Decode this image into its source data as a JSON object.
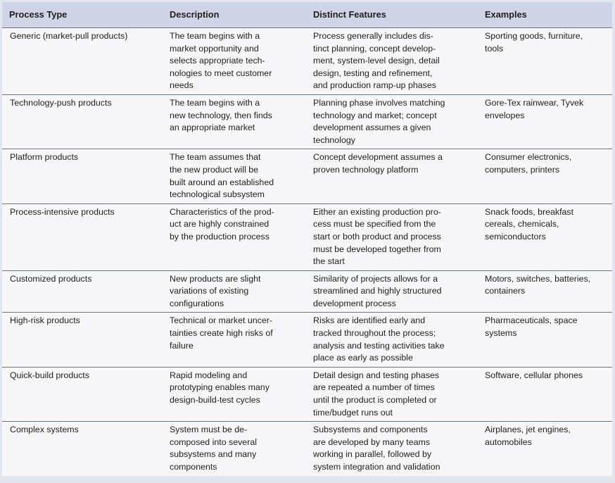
{
  "table": {
    "headers": [
      "Process Type",
      "Description",
      "Distinct Features",
      "Examples"
    ],
    "rows": [
      {
        "process_type": "Generic (market-pull products)",
        "description": "The team begins with a\nmarket opportunity and\nselects appropriate tech-\nnologies to meet customer\nneeds",
        "features": "Process generally includes dis-\ntinct planning, concept develop-\nment, system-level design, detail\ndesign, testing and refinement,\nand production ramp-up phases",
        "examples": "Sporting goods, furniture,\ntools"
      },
      {
        "process_type": "Technology-push products",
        "description": "The team begins with a\nnew technology, then finds\nan appropriate market",
        "features": "Planning phase involves matching\ntechnology and market; concept\ndevelopment assumes a given\ntechnology",
        "examples": "Gore-Tex rainwear, Tyvek\nenvelopes"
      },
      {
        "process_type": "Platform products",
        "description": "The team assumes that\nthe new product will be\nbuilt around an established\ntechnological subsystem",
        "features": "Concept development assumes a\nproven technology platform",
        "examples": "Consumer electronics,\ncomputers, printers"
      },
      {
        "process_type": "Process-intensive products",
        "description": "Characteristics of the prod-\nuct are highly constrained\nby the production process",
        "features": "Either an existing production pro-\ncess must be specified from the\nstart or both product and process\nmust be developed together from\nthe start",
        "examples": "Snack foods, breakfast\ncereals, chemicals,\nsemiconductors"
      },
      {
        "process_type": "Customized products",
        "description": "New products are slight\nvariations of existing\nconfigurations",
        "features": "Similarity of projects allows for a\nstreamlined and highly structured\ndevelopment process",
        "examples": "Motors, switches, batteries,\ncontainers"
      },
      {
        "process_type": "High-risk products",
        "description": "Technical or market uncer-\ntainties create high risks of\nfailure",
        "features": "Risks are identified early and\ntracked throughout the process;\nanalysis and testing activities take\nplace as early as possible",
        "examples": "Pharmaceuticals, space\nsystems"
      },
      {
        "process_type": "Quick-build products",
        "description": "Rapid modeling and\nprototyping enables many\ndesign-build-test cycles",
        "features": "Detail design and testing phases\nare repeated a number of times\nuntil the product is completed or\ntime/budget runs out",
        "examples": "Software, cellular phones"
      },
      {
        "process_type": "Complex systems",
        "description": "System must be de-\ncomposed into several\nsubsystems and many\ncomponents",
        "features": "Subsystems and components\nare developed by many teams\nworking in parallel, followed by\nsystem integration and validation",
        "examples": "Airplanes, jet engines,\nautomobiles"
      }
    ]
  }
}
